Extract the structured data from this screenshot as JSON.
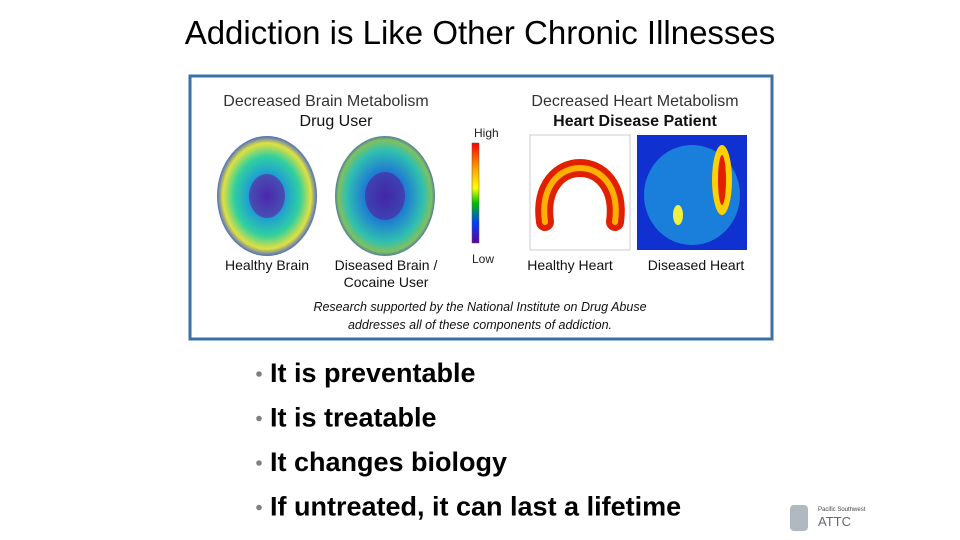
{
  "title": "Addiction is Like Other Chronic Illnesses",
  "figure": {
    "brain": {
      "heading": "Decreased Brain Metabolism",
      "subheading": "Drug User",
      "captions": [
        [
          "Healthy Brain"
        ],
        [
          "Diseased Brain /",
          "Cocaine User"
        ]
      ]
    },
    "scale": {
      "high": "High",
      "low": "Low"
    },
    "heart": {
      "heading": "Decreased Heart Metabolism",
      "subheading": "Heart Disease Patient",
      "captions": [
        [
          "Healthy Heart"
        ],
        [
          "Diseased Heart"
        ]
      ]
    },
    "note": [
      "Research supported by the National Institute on Drug Abuse",
      "addresses all of these components of addiction."
    ]
  },
  "bullets": [
    "It is preventable",
    "It is treatable",
    "It changes biology",
    "If untreated, it can last a lifetime"
  ],
  "logo": {
    "region": "Pacific Southwest",
    "name": "ATTC"
  }
}
